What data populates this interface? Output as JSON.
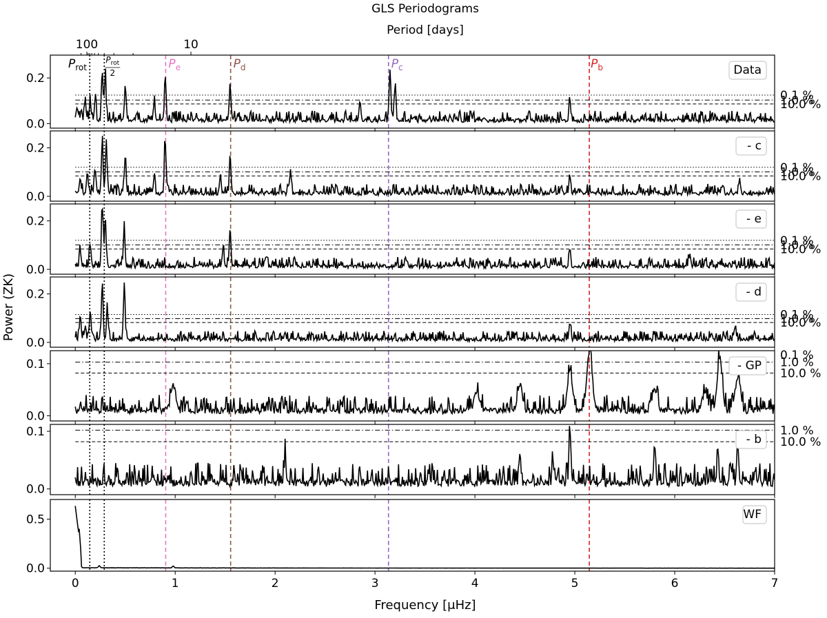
{
  "chart_data": {
    "type": "line",
    "title": "GLS Periodograms",
    "top_axis": {
      "label": "Period [days]",
      "ticks": [
        {
          "period": 100,
          "label": "100"
        },
        {
          "period": 10,
          "label": "10"
        }
      ]
    },
    "xlabel": "Frequency [μHz]",
    "ylabel": "Power (ZK)",
    "xlim": [
      -0.25,
      7.0
    ],
    "xticks": [
      0,
      1,
      2,
      3,
      4,
      5,
      6,
      7
    ],
    "xtick_labels": [
      "0",
      "1",
      "2",
      "3",
      "4",
      "5",
      "6",
      "7"
    ],
    "markers": [
      {
        "name": "prot",
        "freq": 0.145,
        "style": "dotted",
        "color": "#000000"
      },
      {
        "name": "prot_half",
        "freq": 0.29,
        "style": "dotted",
        "color": "#000000"
      },
      {
        "name": "Pe",
        "freq": 0.905,
        "style": "dashed",
        "color": "#e377c2"
      },
      {
        "name": "Pd",
        "freq": 1.555,
        "style": "dashed",
        "color": "#8c564b"
      },
      {
        "name": "Pc",
        "freq": 3.135,
        "style": "dashed",
        "color": "#9467bd"
      },
      {
        "name": "Pb",
        "freq": 5.145,
        "style": "dashed",
        "color": "#d62728"
      }
    ],
    "marker_labels": {
      "prot_main": "P",
      "prot_sub": "rot",
      "half_num_main": "P",
      "half_num_sub": "rot",
      "half_den": "2",
      "Pe_main": "P",
      "Pe_sub": "e",
      "Pd_main": "P",
      "Pd_sub": "d",
      "Pc_main": "P",
      "Pc_sub": "c",
      "Pb_main": "P",
      "Pb_sub": "b"
    },
    "panels": [
      {
        "legend": "Data",
        "ylim": [
          -0.02,
          0.3
        ],
        "yticks": [
          0.0,
          0.2
        ],
        "ytick_labels": [
          "0.0",
          "0.2"
        ],
        "fap": [
          {
            "label": "0.1 %",
            "value": 0.125,
            "style": "dotted"
          },
          {
            "label": "1.0 %",
            "value": 0.103,
            "style": "dashdot"
          },
          {
            "label": "10.0 %",
            "value": 0.086,
            "style": "dashed"
          }
        ],
        "peaks": [
          [
            0.02,
            0.06
          ],
          [
            0.06,
            0.05
          ],
          [
            0.1,
            0.08
          ],
          [
            0.15,
            0.08
          ],
          [
            0.2,
            0.1
          ],
          [
            0.27,
            0.22
          ],
          [
            0.3,
            0.2
          ],
          [
            0.5,
            0.15
          ],
          [
            0.79,
            0.08
          ],
          [
            0.9,
            0.19
          ],
          [
            1.55,
            0.16
          ],
          [
            2.85,
            0.08
          ],
          [
            3.15,
            0.23
          ],
          [
            3.2,
            0.14
          ],
          [
            4.95,
            0.09
          ]
        ],
        "noise": 0.035,
        "seed": 11
      },
      {
        "legend": "- c",
        "ylim": [
          -0.02,
          0.27
        ],
        "yticks": [
          0.0,
          0.2
        ],
        "ytick_labels": [
          "0.0",
          "0.2"
        ],
        "fap": [
          {
            "label": "0.1 %",
            "value": 0.12,
            "style": "dotted"
          },
          {
            "label": "1.0 %",
            "value": 0.101,
            "style": "dashdot"
          },
          {
            "label": "10.0 %",
            "value": 0.084,
            "style": "dashed"
          }
        ],
        "peaks": [
          [
            0.05,
            0.07
          ],
          [
            0.12,
            0.09
          ],
          [
            0.2,
            0.1
          ],
          [
            0.27,
            0.22
          ],
          [
            0.31,
            0.2
          ],
          [
            0.5,
            0.15
          ],
          [
            0.79,
            0.07
          ],
          [
            0.9,
            0.22
          ],
          [
            1.55,
            0.16
          ],
          [
            1.45,
            0.07
          ],
          [
            2.15,
            0.07
          ],
          [
            4.95,
            0.08
          ],
          [
            6.65,
            0.06
          ]
        ],
        "noise": 0.032,
        "seed": 22
      },
      {
        "legend": "- e",
        "ylim": [
          -0.02,
          0.27
        ],
        "yticks": [
          0.0,
          0.2
        ],
        "ytick_labels": [
          "0.0",
          "0.2"
        ],
        "fap": [
          {
            "label": "0.1 %",
            "value": 0.12,
            "style": "dotted"
          },
          {
            "label": "1.0 %",
            "value": 0.101,
            "style": "dashdot"
          },
          {
            "label": "10.0 %",
            "value": 0.084,
            "style": "dashed"
          }
        ],
        "peaks": [
          [
            0.05,
            0.06
          ],
          [
            0.15,
            0.09
          ],
          [
            0.27,
            0.25
          ],
          [
            0.3,
            0.2
          ],
          [
            0.49,
            0.15
          ],
          [
            1.55,
            0.16
          ],
          [
            1.48,
            0.08
          ],
          [
            4.95,
            0.08
          ],
          [
            6.15,
            0.05
          ]
        ],
        "noise": 0.032,
        "seed": 33
      },
      {
        "legend": "- d",
        "ylim": [
          -0.02,
          0.27
        ],
        "yticks": [
          0.0,
          0.2
        ],
        "ytick_labels": [
          "0.0",
          "0.2"
        ],
        "fap": [
          {
            "label": "0.1 %",
            "value": 0.115,
            "style": "dotted"
          },
          {
            "label": "1.0 %",
            "value": 0.098,
            "style": "dashdot"
          },
          {
            "label": "10.0 %",
            "value": 0.082,
            "style": "dashed"
          }
        ],
        "peaks": [
          [
            0.05,
            0.1
          ],
          [
            0.1,
            0.06
          ],
          [
            0.15,
            0.1
          ],
          [
            0.27,
            0.24
          ],
          [
            0.32,
            0.12
          ],
          [
            0.49,
            0.21
          ],
          [
            4.95,
            0.07
          ],
          [
            6.6,
            0.05
          ]
        ],
        "noise": 0.03,
        "seed": 44
      },
      {
        "legend": "- GP",
        "ylim": [
          -0.01,
          0.125
        ],
        "yticks": [
          0.0,
          0.1
        ],
        "ytick_labels": [
          "0.0",
          "0.1"
        ],
        "fap": [
          {
            "label": "0.1 %",
            "value": 0.125,
            "style": "dotted"
          },
          {
            "label": "1.0 %",
            "value": 0.103,
            "style": "dashdot"
          },
          {
            "label": "10.0 %",
            "value": 0.082,
            "style": "dashed"
          }
        ],
        "peaks": [
          [
            0.98,
            0.05
          ],
          [
            4.02,
            0.04
          ],
          [
            4.45,
            0.05
          ],
          [
            4.95,
            0.075
          ],
          [
            5.15,
            0.12
          ],
          [
            5.8,
            0.04
          ],
          [
            6.3,
            0.035
          ],
          [
            6.45,
            0.105
          ],
          [
            6.63,
            0.065
          ]
        ],
        "noise": 0.025,
        "seed": 55
      },
      {
        "legend": "- b",
        "ylim": [
          -0.01,
          0.112
        ],
        "yticks": [
          0.0,
          0.1
        ],
        "ytick_labels": [
          "0.0",
          "0.1"
        ],
        "fap": [
          {
            "label": "1.0 %",
            "value": 0.102,
            "style": "dashdot"
          },
          {
            "label": "10.0 %",
            "value": 0.082,
            "style": "dashed"
          }
        ],
        "peaks": [
          [
            2.1,
            0.045
          ],
          [
            4.45,
            0.05
          ],
          [
            4.78,
            0.04
          ],
          [
            4.95,
            0.1
          ],
          [
            5.8,
            0.05
          ],
          [
            6.43,
            0.03
          ],
          [
            6.63,
            0.08
          ],
          [
            6.8,
            0.02
          ]
        ],
        "noise": 0.028,
        "seed": 66
      },
      {
        "legend": "WF",
        "ylim": [
          -0.03,
          0.7
        ],
        "yticks": [
          0.0,
          0.5
        ],
        "ytick_labels": [
          "0.0",
          "0.5"
        ],
        "fap": [],
        "peaks": [
          [
            0.0,
            0.63
          ],
          [
            0.04,
            0.4
          ],
          [
            0.98,
            0.02
          ],
          [
            0.24,
            0.02
          ]
        ],
        "noise": 0.006,
        "seed": 77
      }
    ]
  }
}
